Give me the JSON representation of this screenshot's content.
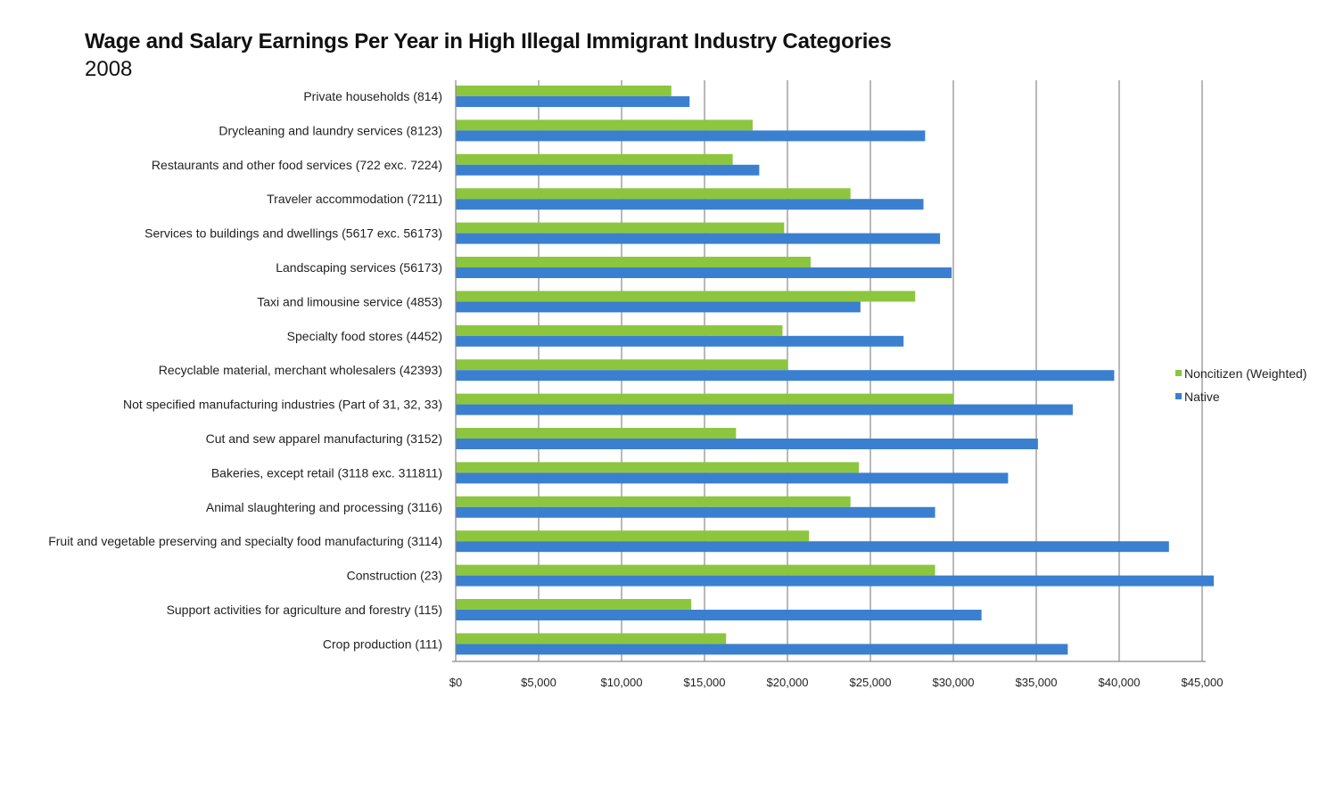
{
  "chart_data": {
    "type": "bar",
    "orientation": "horizontal",
    "title": "Wage and Salary Earnings Per Year in High Illegal Immigrant Industry Categories",
    "subtitle": "2008",
    "xlabel": "",
    "ylabel": "",
    "xlim": [
      0,
      45000
    ],
    "xticks": [
      0,
      5000,
      10000,
      15000,
      20000,
      25000,
      30000,
      35000,
      40000,
      45000
    ],
    "xtick_labels": [
      "$0",
      "$5,000",
      "$10,000",
      "$15,000",
      "$20,000",
      "$25,000",
      "$30,000",
      "$35,000",
      "$40,000",
      "$45,000"
    ],
    "grid": true,
    "legend_position": "right",
    "categories": [
      "Private households (814)",
      "Drycleaning and laundry services (8123)",
      "Restaurants and other food services (722 exc. 7224)",
      "Traveler accommodation (7211)",
      "Services to buildings and dwellings (5617 exc. 56173)",
      "Landscaping services (56173)",
      "Taxi and limousine service (4853)",
      "Specialty food stores (4452)",
      "Recyclable material, merchant wholesalers (42393)",
      "Not specified manufacturing industries (Part of 31, 32, 33)",
      "Cut and sew apparel manufacturing (3152)",
      "Bakeries, except retail (3118 exc. 311811)",
      "Animal slaughtering and processing (3116)",
      "Fruit and vegetable preserving and specialty food manufacturing (3114)",
      "Construction (23)",
      "Support activities for agriculture and forestry (115)",
      "Crop production (111)"
    ],
    "series": [
      {
        "name": "Noncitizen (Weighted)",
        "color": "#8cc63f",
        "values": [
          13000,
          17900,
          16700,
          23800,
          19800,
          21400,
          27700,
          19700,
          20000,
          30000,
          16900,
          24300,
          23800,
          21300,
          28900,
          14200,
          16300
        ]
      },
      {
        "name": "Native",
        "color": "#3b7fd0",
        "values": [
          14100,
          28300,
          18300,
          28200,
          29200,
          29900,
          24400,
          27000,
          39700,
          37200,
          35100,
          33300,
          28900,
          43000,
          45700,
          31700,
          36900
        ]
      }
    ]
  }
}
